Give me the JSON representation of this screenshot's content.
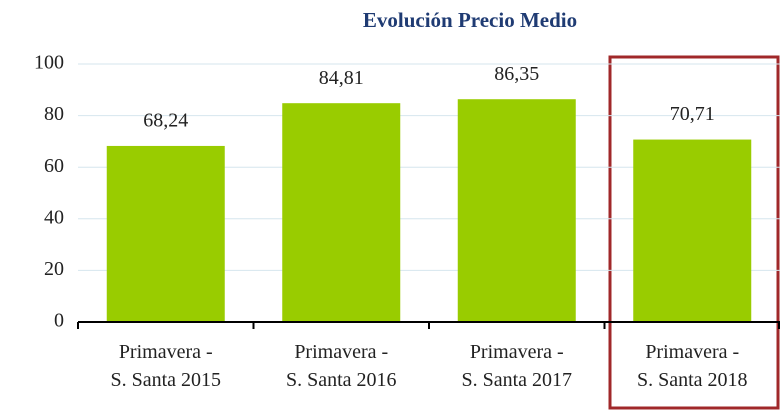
{
  "chart_data": {
    "type": "bar",
    "title": "Evolución Precio Medio",
    "categories": [
      "Primavera -\nS. Santa 2015",
      "Primavera -\nS. Santa 2016",
      "Primavera -\nS. Santa 2017",
      "Primavera -\nS. Santa 2018"
    ],
    "values": [
      68.24,
      84.81,
      86.35,
      70.71
    ],
    "value_labels": [
      "68,24",
      "84,81",
      "86,35",
      "70,71"
    ],
    "color": "#99cc00",
    "ylim": [
      0,
      100
    ],
    "yticks": [
      0,
      20,
      40,
      60,
      80,
      100
    ],
    "grid": true
  }
}
